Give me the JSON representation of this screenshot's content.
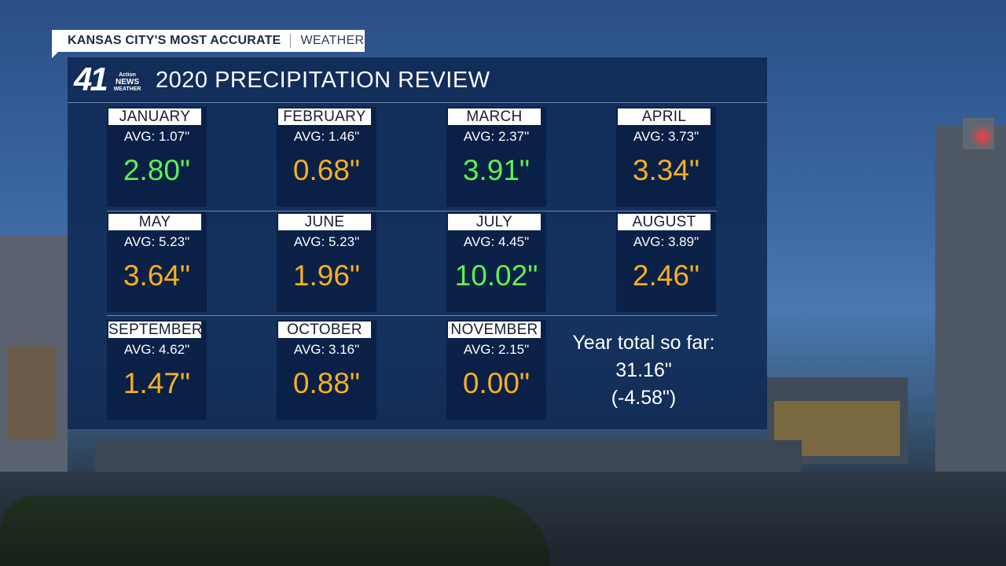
{
  "top_label": {
    "accent": "KANSAS CITY'S MOST ACCURATE",
    "sub": "WEATHER"
  },
  "logo": {
    "number": "41",
    "line1": "Action",
    "line2": "NEWS",
    "line3": "WEATHER"
  },
  "title": "2020 PRECIPITATION REVIEW",
  "months": [
    {
      "name": "JANUARY",
      "avg": "AVG: 1.07\"",
      "value": "2.80\"",
      "status": "above"
    },
    {
      "name": "FEBRUARY",
      "avg": "AVG: 1.46\"",
      "value": "0.68\"",
      "status": "below"
    },
    {
      "name": "MARCH",
      "avg": "AVG: 2.37\"",
      "value": "3.91\"",
      "status": "above"
    },
    {
      "name": "APRIL",
      "avg": "AVG: 3.73\"",
      "value": "3.34\"",
      "status": "below"
    },
    {
      "name": "MAY",
      "avg": "AVG: 5.23\"",
      "value": "3.64\"",
      "status": "below"
    },
    {
      "name": "JUNE",
      "avg": "AVG: 5.23\"",
      "value": "1.96\"",
      "status": "below"
    },
    {
      "name": "JULY",
      "avg": "AVG: 4.45\"",
      "value": "10.02\"",
      "status": "above"
    },
    {
      "name": "AUGUST",
      "avg": "AVG: 3.89\"",
      "value": "2.46\"",
      "status": "below"
    },
    {
      "name": "SEPTEMBER",
      "avg": "AVG: 4.62\"",
      "value": "1.47\"",
      "status": "below"
    },
    {
      "name": "OCTOBER",
      "avg": "AVG: 3.16\"",
      "value": "0.88\"",
      "status": "below"
    },
    {
      "name": "NOVEMBER",
      "avg": "AVG: 2.15\"",
      "value": "0.00\"",
      "status": "below"
    }
  ],
  "year_total": {
    "label": "Year total so far:",
    "value": "31.16\"",
    "departure": "(-4.58\")"
  },
  "colors": {
    "above": "#5df24e",
    "below": "#f6b021",
    "panel": "#0d2652",
    "label_bg": "#ffffff"
  }
}
